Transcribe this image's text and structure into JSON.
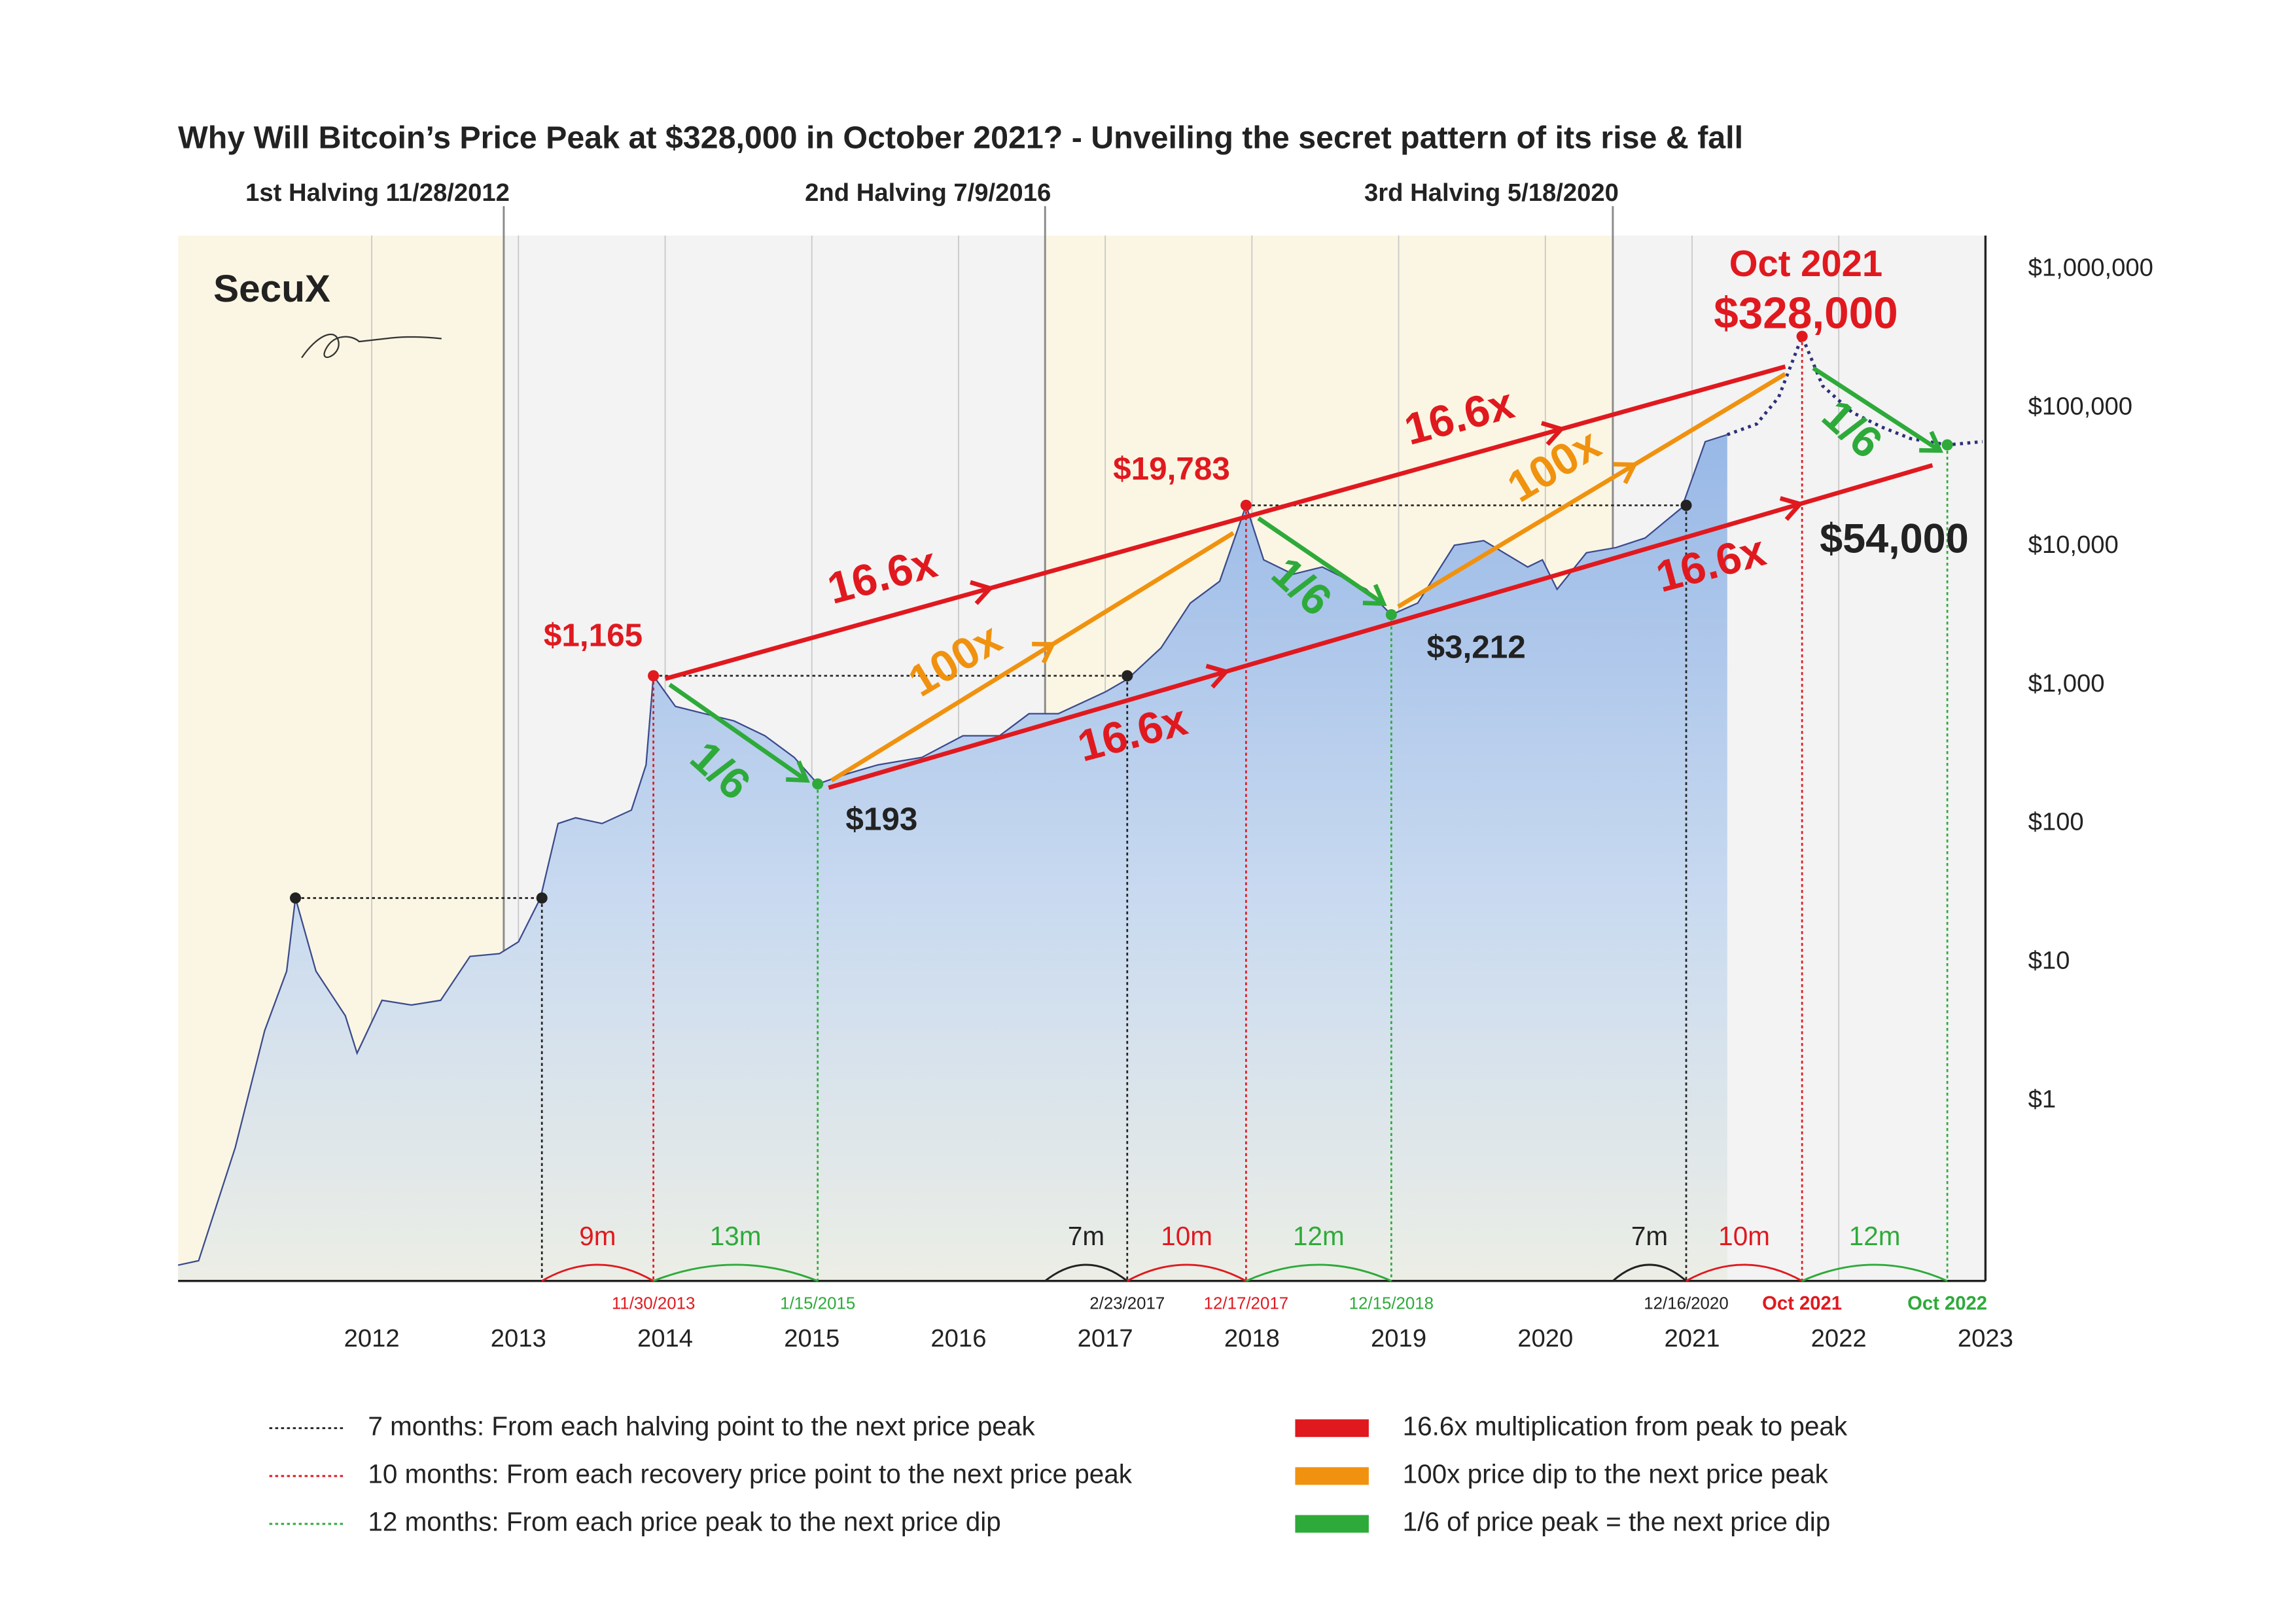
{
  "chart_data": {
    "type": "line",
    "title": "Why Will Bitcoin’s Price Peak at $328,000 in October 2021?  - Unveiling the secret pattern of its rise & fall",
    "brand": "SecuX",
    "log_scale": true,
    "grid": true,
    "xlim": [
      2010.68,
      2023
    ],
    "xticks": [
      2012,
      2013,
      2014,
      2015,
      2016,
      2017,
      2018,
      2019,
      2020,
      2021,
      2022,
      2023
    ],
    "ylim": [
      0.05,
      1750000
    ],
    "yticks": [
      {
        "value": 1,
        "label": "$1"
      },
      {
        "value": 10,
        "label": "$10"
      },
      {
        "value": 100,
        "label": "$100"
      },
      {
        "value": 1000,
        "label": "$1,000"
      },
      {
        "value": 10000,
        "label": "$10,000"
      },
      {
        "value": 100000,
        "label": "$100,000"
      },
      {
        "value": 1000000,
        "label": "$1,000,000"
      }
    ],
    "halvings": [
      {
        "label": "1st Halving 11/28/2012",
        "x": 2012.9
      },
      {
        "label": "2nd Halving 7/9/2016",
        "x": 2016.59
      },
      {
        "label": "3rd Halving 5/18/2020",
        "x": 2020.46
      }
    ],
    "series": [
      {
        "color": "#3a4a8c",
        "style": "solid",
        "x": [
          2010.68,
          2010.82,
          2011.07,
          2011.27,
          2011.42,
          2011.48,
          2011.62,
          2011.82,
          2011.9,
          2012.07,
          2012.27,
          2012.47,
          2012.67,
          2012.87,
          2013.0,
          2013.15,
          2013.27,
          2013.39,
          2013.57,
          2013.77,
          2013.87,
          2013.92,
          2014.07,
          2014.27,
          2014.47,
          2014.68,
          2014.88,
          2015.04,
          2015.25,
          2015.45,
          2015.75,
          2016.03,
          2016.28,
          2016.48,
          2016.68,
          2017.0,
          2017.15,
          2017.38,
          2017.58,
          2017.78,
          2017.96,
          2018.08,
          2018.28,
          2018.48,
          2018.78,
          2018.95,
          2019.13,
          2019.38,
          2019.58,
          2019.88,
          2019.98,
          2020.08,
          2020.28,
          2020.48,
          2020.68,
          2020.93,
          2021.09,
          2021.24
        ],
        "values": [
          0.065,
          0.07,
          0.46,
          3.2,
          8.6,
          29,
          8.6,
          4.1,
          2.2,
          5.3,
          4.9,
          5.3,
          11,
          11.5,
          14,
          29,
          100,
          110,
          100,
          125,
          265,
          1165,
          700,
          620,
          550,
          430,
          300,
          193,
          230,
          265,
          300,
          430,
          430,
          620,
          620,
          890,
          1100,
          1850,
          3900,
          5600,
          19783,
          8000,
          6300,
          7100,
          4900,
          3212,
          3900,
          10200,
          11000,
          7100,
          8000,
          4900,
          9000,
          9800,
          11500,
          19000,
          57000,
          64000
        ]
      },
      {
        "color": "#2d2f7a",
        "style": "dotted",
        "x": [
          2021.24,
          2021.44,
          2021.59,
          2021.75,
          2021.89,
          2022.09,
          2022.29,
          2022.49,
          2022.74,
          2022.98
        ],
        "values": [
          64000,
          76400,
          119000,
          328000,
          144000,
          93000,
          72800,
          60000,
          54000,
          57000
        ]
      }
    ],
    "points": [
      {
        "x": 2011.48,
        "value": 29,
        "color": "#222222"
      },
      {
        "x": 2013.16,
        "value": 29,
        "color": "#222222"
      },
      {
        "x": 2013.92,
        "value": 1165,
        "color": "#e0191f",
        "label": "$1,165",
        "date": "11/30/2013"
      },
      {
        "x": 2015.04,
        "value": 193,
        "color": "#2eaa3a",
        "label": "$193",
        "date": "1/15/2015"
      },
      {
        "x": 2017.15,
        "value": 1165,
        "color": "#222222",
        "date": "2/23/2017"
      },
      {
        "x": 2017.96,
        "value": 19783,
        "color": "#e0191f",
        "label": "$19,783",
        "date": "12/17/2017"
      },
      {
        "x": 2018.95,
        "value": 3212,
        "color": "#2eaa3a",
        "label": "$3,212",
        "date": "12/15/2018"
      },
      {
        "x": 2020.96,
        "value": 19783,
        "color": "#222222",
        "date": "12/16/2020"
      },
      {
        "x": 2021.75,
        "value": 328000,
        "color": "#e0191f",
        "heading": "Oct 2021",
        "label": "$328,000",
        "date": "Oct 2021"
      },
      {
        "x": 2022.74,
        "value": 54000,
        "color": "#2eaa3a",
        "label": "$54,000",
        "date": "Oct 2022"
      }
    ],
    "intervals": [
      {
        "label": "9m",
        "color": "#e0191f"
      },
      {
        "label": "13m",
        "color": "#2eaa3a"
      },
      {
        "label": "7m",
        "color": "#222222"
      },
      {
        "label": "10m",
        "color": "#e0191f"
      },
      {
        "label": "12m",
        "color": "#2eaa3a"
      },
      {
        "label": "7m",
        "color": "#222222"
      },
      {
        "label": "10m",
        "color": "#e0191f"
      },
      {
        "label": "12m",
        "color": "#2eaa3a"
      }
    ],
    "annotations": [
      {
        "text": "16.6x",
        "color": "#e0191f"
      },
      {
        "text": "16.6x",
        "color": "#e0191f"
      },
      {
        "text": "16.6x",
        "color": "#e0191f"
      },
      {
        "text": "16.6x",
        "color": "#e0191f"
      },
      {
        "text": "100x",
        "color": "#f0920f"
      },
      {
        "text": "100x",
        "color": "#f0920f"
      },
      {
        "text": "1/6",
        "color": "#2eaa3a"
      },
      {
        "text": "1/6",
        "color": "#2eaa3a"
      },
      {
        "text": "1/6",
        "color": "#2eaa3a"
      }
    ],
    "legend": [
      {
        "text": "7 months: From each halving point to the next price peak",
        "color": "#222222",
        "style": "dotted"
      },
      {
        "text": "10 months: From each recovery price point to the next price peak",
        "color": "#e0191f",
        "style": "dotted"
      },
      {
        "text": "12 months: From each price peak to the next price dip",
        "color": "#2eaa3a",
        "style": "dotted"
      },
      {
        "text": "16.6x multiplication from peak to peak",
        "color": "#e0191f",
        "style": "bar"
      },
      {
        "text": "100x price dip to the next price peak",
        "color": "#f0920f",
        "style": "bar"
      },
      {
        "text": "1/6 of price peak = the next price dip",
        "color": "#2eaa3a",
        "style": "bar"
      }
    ]
  }
}
